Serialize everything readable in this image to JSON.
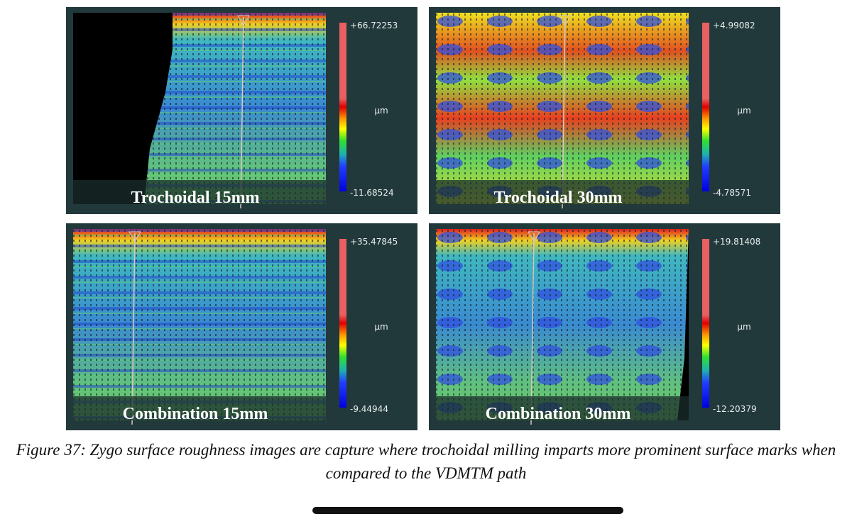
{
  "panels": [
    {
      "label": "Trochoidal  15mm",
      "max": "+66.72253",
      "unit": "µm",
      "min": "-11.68524"
    },
    {
      "label": "Trochoidal  30mm",
      "max": "+4.99082",
      "unit": "µm",
      "min": "-4.78571"
    },
    {
      "label": "Combination  15mm",
      "max": "+35.47845",
      "unit": "µm",
      "min": "-9.44944"
    },
    {
      "label": "Combination  30mm",
      "max": "+19.81408",
      "unit": "µm",
      "min": "-12.20379"
    }
  ],
  "caption": "Figure 37: Zygo surface roughness images are capture where trochoidal milling imparts more prominent surface marks when compared to the VDMTM path"
}
